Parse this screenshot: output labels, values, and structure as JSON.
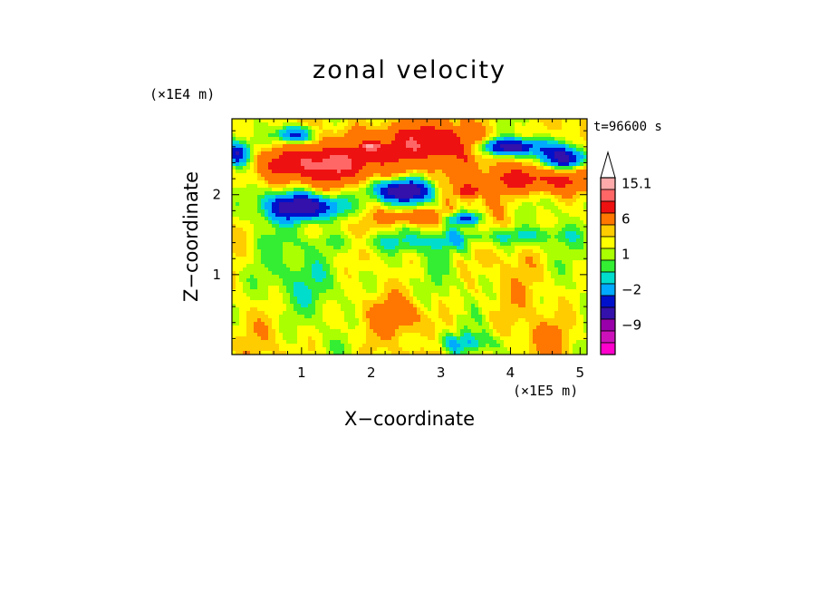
{
  "chart_data": {
    "type": "heatmap",
    "title": "zonal velocity",
    "xlabel": "X−coordinate",
    "ylabel": "Z−coordinate",
    "x_unit": "(×1E5 m)",
    "y_unit": "(×1E4 m)",
    "time_label": "t=96600 s",
    "xlim": [
      0,
      5.1
    ],
    "ylim": [
      0,
      2.95
    ],
    "x_ticks": [
      1,
      2,
      3,
      4,
      5
    ],
    "y_ticks": [
      1,
      2
    ],
    "colorbar": {
      "levels": [
        {
          "value": -15,
          "color": "#ff00cc"
        },
        {
          "value": -12,
          "color": "#cc11bb"
        },
        {
          "value": -9,
          "color": "#9900aa"
        },
        {
          "value": -6,
          "color": "#3311aa"
        },
        {
          "value": -4,
          "color": "#0011cc"
        },
        {
          "value": -2,
          "color": "#00aaff"
        },
        {
          "value": -1,
          "color": "#00ddcc"
        },
        {
          "value": 0,
          "color": "#33ee33"
        },
        {
          "value": 1,
          "color": "#aaff00"
        },
        {
          "value": 2,
          "color": "#ffff00"
        },
        {
          "value": 3,
          "color": "#ffcc00"
        },
        {
          "value": 6,
          "color": "#ff7700"
        },
        {
          "value": 9,
          "color": "#ee1111"
        },
        {
          "value": 12,
          "color": "#ff6666"
        },
        {
          "value": 15.1,
          "color": "#ffaaaa"
        }
      ],
      "tick_labels": [
        "15.1",
        "6",
        "1",
        "−2",
        "−9"
      ],
      "extend": "max"
    }
  }
}
